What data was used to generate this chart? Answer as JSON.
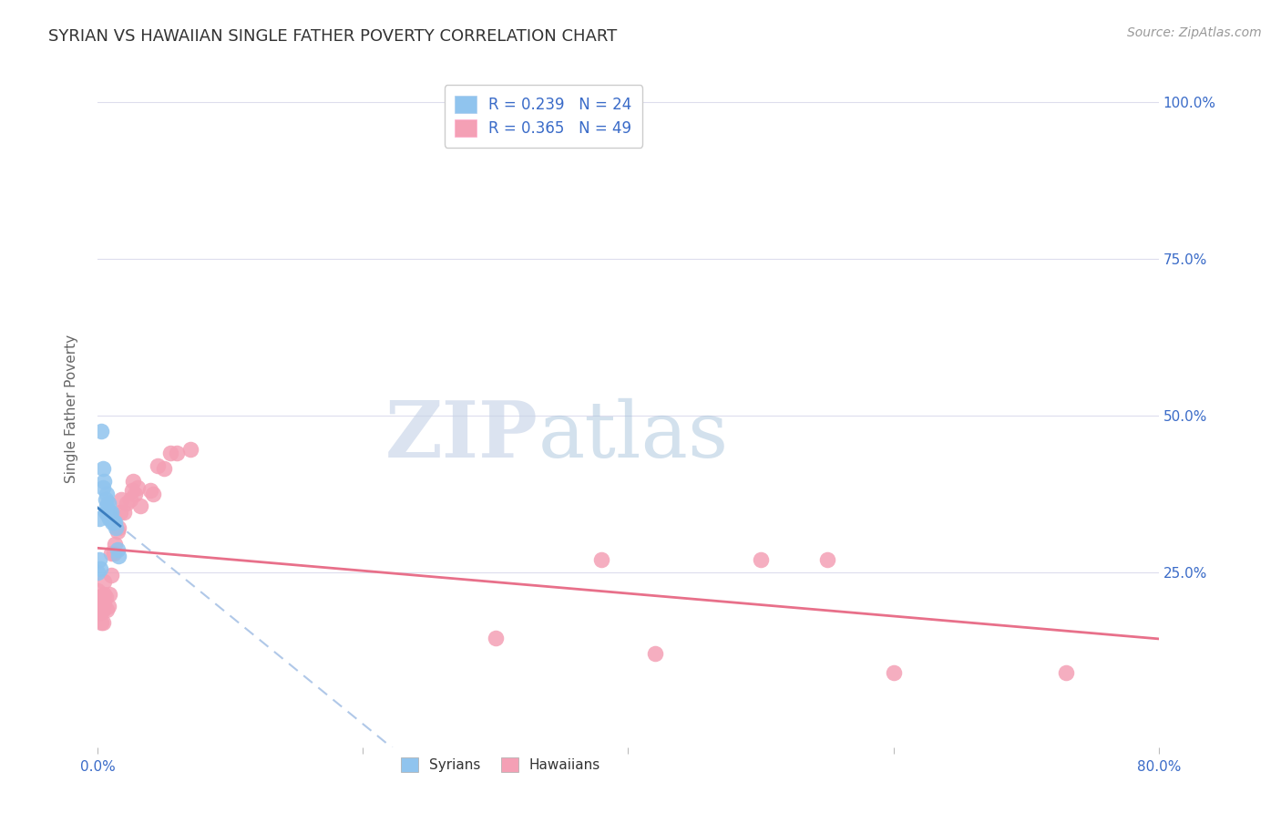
{
  "title": "SYRIAN VS HAWAIIAN SINGLE FATHER POVERTY CORRELATION CHART",
  "source": "Source: ZipAtlas.com",
  "ylabel": "Single Father Poverty",
  "xlim": [
    0.0,
    0.8
  ],
  "ylim": [
    -0.03,
    1.05
  ],
  "xticks": [
    0.0,
    0.2,
    0.4,
    0.6,
    0.8
  ],
  "xtick_labels": [
    "0.0%",
    "",
    "",
    "",
    "80.0%"
  ],
  "ytick_labels": [
    "100.0%",
    "75.0%",
    "50.0%",
    "25.0%"
  ],
  "ytick_positions": [
    1.0,
    0.75,
    0.5,
    0.25
  ],
  "legend_R_syrian": "R = 0.239",
  "legend_N_syrian": "N = 24",
  "legend_R_hawaiian": "R = 0.365",
  "legend_N_hawaiian": "N = 49",
  "syrian_color": "#90C4EE",
  "hawaiian_color": "#F4A0B5",
  "syrian_line_color": "#3A7DBF",
  "hawaiian_line_color": "#E8708A",
  "syrian_dashed_color": "#B0C8E8",
  "background_color": "#FFFFFF",
  "grid_color": "#DDDDED",
  "syrian_x": [
    0.001,
    0.003,
    0.004,
    0.004,
    0.005,
    0.006,
    0.006,
    0.007,
    0.007,
    0.008,
    0.008,
    0.009,
    0.009,
    0.01,
    0.01,
    0.011,
    0.012,
    0.013,
    0.014,
    0.015,
    0.016,
    0.0,
    0.001,
    0.002
  ],
  "syrian_y": [
    0.335,
    0.475,
    0.415,
    0.385,
    0.395,
    0.365,
    0.345,
    0.355,
    0.375,
    0.34,
    0.36,
    0.335,
    0.345,
    0.335,
    0.345,
    0.33,
    0.33,
    0.33,
    0.32,
    0.285,
    0.275,
    0.25,
    0.27,
    0.255
  ],
  "hawaiian_x": [
    0.0,
    0.0,
    0.0,
    0.001,
    0.001,
    0.002,
    0.002,
    0.003,
    0.003,
    0.003,
    0.004,
    0.004,
    0.005,
    0.005,
    0.005,
    0.006,
    0.007,
    0.008,
    0.009,
    0.01,
    0.01,
    0.012,
    0.013,
    0.015,
    0.016,
    0.017,
    0.018,
    0.02,
    0.022,
    0.025,
    0.026,
    0.027,
    0.028,
    0.03,
    0.032,
    0.04,
    0.042,
    0.045,
    0.05,
    0.055,
    0.06,
    0.07,
    0.3,
    0.38,
    0.42,
    0.5,
    0.55,
    0.6,
    0.73
  ],
  "hawaiian_y": [
    0.2,
    0.22,
    0.19,
    0.19,
    0.21,
    0.185,
    0.195,
    0.17,
    0.19,
    0.21,
    0.17,
    0.19,
    0.2,
    0.215,
    0.235,
    0.21,
    0.19,
    0.195,
    0.215,
    0.245,
    0.28,
    0.28,
    0.295,
    0.315,
    0.32,
    0.345,
    0.365,
    0.345,
    0.36,
    0.365,
    0.38,
    0.395,
    0.375,
    0.385,
    0.355,
    0.38,
    0.375,
    0.42,
    0.415,
    0.44,
    0.44,
    0.445,
    0.145,
    0.27,
    0.12,
    0.27,
    0.27,
    0.09,
    0.09
  ],
  "title_fontsize": 13,
  "tick_fontsize": 11,
  "ylabel_fontsize": 11,
  "legend_fontsize": 12
}
